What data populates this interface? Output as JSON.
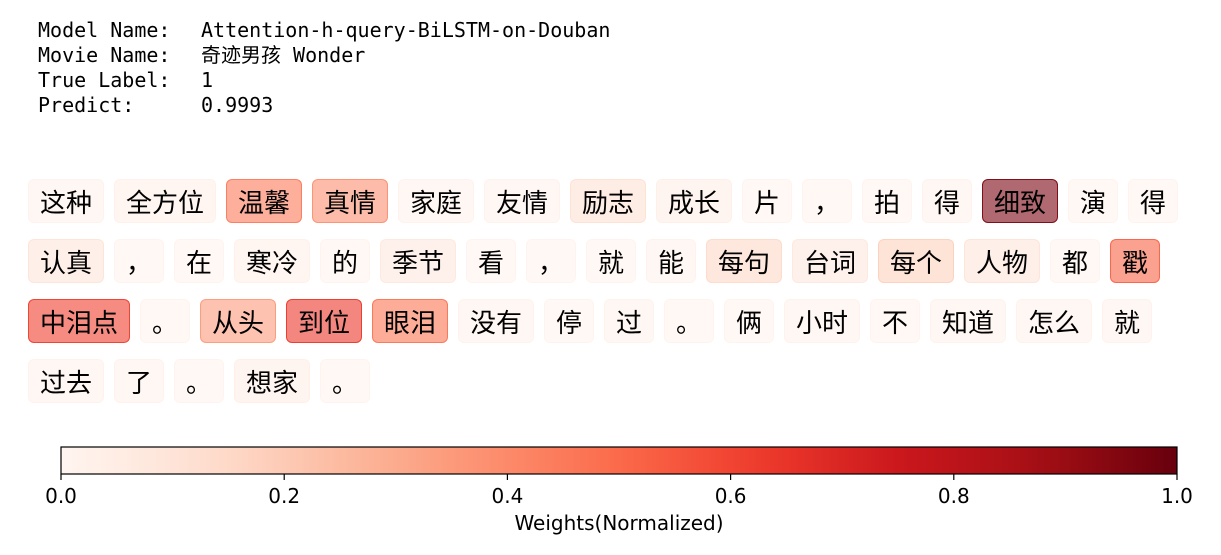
{
  "info": {
    "model_label": "Model Name:",
    "model_value": "Attention-h-query-BiLSTM-on-Douban",
    "movie_label": "Movie Name:",
    "movie_value": "奇迹男孩 Wonder",
    "true_label": "True Label:",
    "true_value": "1",
    "predict_label": "Predict:",
    "predict_value": "0.9993"
  },
  "chart_data": {
    "type": "heatmap",
    "colormap": "Reds",
    "colorbar": {
      "label": "Weights(Normalized)",
      "range": [
        0.0,
        1.0
      ],
      "ticks": [
        "0.0",
        "0.2",
        "0.4",
        "0.6",
        "0.8",
        "1.0"
      ]
    },
    "tokens": [
      [
        {
          "text": "这种",
          "weight": 0.02
        },
        {
          "text": "全方位",
          "weight": 0.03
        },
        {
          "text": "温馨",
          "weight": 0.45
        },
        {
          "text": "真情",
          "weight": 0.38
        },
        {
          "text": "家庭",
          "weight": 0.02
        },
        {
          "text": "友情",
          "weight": 0.02
        },
        {
          "text": "励志",
          "weight": 0.12
        },
        {
          "text": "成长",
          "weight": 0.04
        },
        {
          "text": "片",
          "weight": 0.01
        },
        {
          "text": "，",
          "weight": 0.01
        },
        {
          "text": "拍",
          "weight": 0.01
        },
        {
          "text": "得",
          "weight": 0.02
        },
        {
          "text": "细致",
          "weight": 0.96
        },
        {
          "text": "演",
          "weight": 0.01
        },
        {
          "text": "得",
          "weight": 0.01
        }
      ],
      [
        {
          "text": "认真",
          "weight": 0.1
        },
        {
          "text": "，",
          "weight": 0.01
        },
        {
          "text": "在",
          "weight": 0.01
        },
        {
          "text": "寒冷",
          "weight": 0.03
        },
        {
          "text": "的",
          "weight": 0.01
        },
        {
          "text": "季节",
          "weight": 0.08
        },
        {
          "text": "看",
          "weight": 0.01
        },
        {
          "text": "，",
          "weight": 0.01
        },
        {
          "text": "就",
          "weight": 0.01
        },
        {
          "text": "能",
          "weight": 0.02
        },
        {
          "text": "每句",
          "weight": 0.15
        },
        {
          "text": "台词",
          "weight": 0.08
        },
        {
          "text": "每个",
          "weight": 0.18
        },
        {
          "text": "人物",
          "weight": 0.1
        },
        {
          "text": "都",
          "weight": 0.01
        },
        {
          "text": "戳",
          "weight": 0.52
        }
      ],
      [
        {
          "text": "中泪点",
          "weight": 0.62
        },
        {
          "text": "。",
          "weight": 0.01
        },
        {
          "text": "从头",
          "weight": 0.35
        },
        {
          "text": "到位",
          "weight": 0.64
        },
        {
          "text": "眼泪",
          "weight": 0.47
        },
        {
          "text": "没有",
          "weight": 0.02
        },
        {
          "text": "停",
          "weight": 0.01
        },
        {
          "text": "过",
          "weight": 0.02
        },
        {
          "text": "。",
          "weight": 0.01
        },
        {
          "text": "俩",
          "weight": 0.01
        },
        {
          "text": "小时",
          "weight": 0.02
        },
        {
          "text": "不",
          "weight": 0.01
        },
        {
          "text": "知道",
          "weight": 0.02
        },
        {
          "text": "怎么",
          "weight": 0.02
        },
        {
          "text": "就",
          "weight": 0.02
        }
      ],
      [
        {
          "text": "过去",
          "weight": 0.02
        },
        {
          "text": "了",
          "weight": 0.02
        },
        {
          "text": "。",
          "weight": 0.01
        },
        {
          "text": "想家",
          "weight": 0.04
        },
        {
          "text": "。",
          "weight": 0.01
        }
      ]
    ]
  }
}
